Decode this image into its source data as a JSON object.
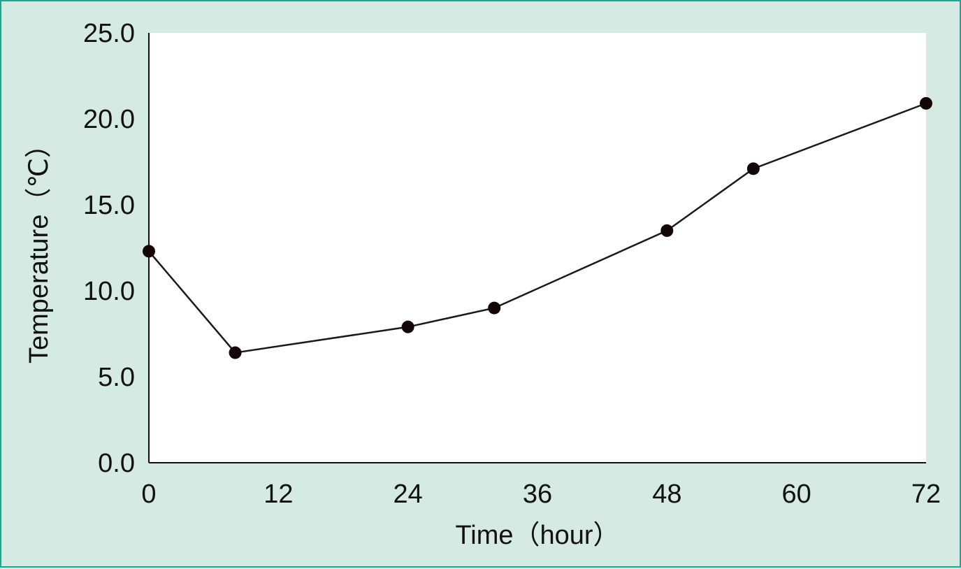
{
  "chart_data": {
    "type": "line",
    "xlabel": "Time（hour）",
    "ylabel": "Temperature（℃）",
    "xlim": [
      0,
      72
    ],
    "ylim": [
      0,
      25
    ],
    "x_ticks": [
      0,
      12,
      24,
      36,
      48,
      60,
      72
    ],
    "x_tick_labels": [
      "0",
      "12",
      "24",
      "36",
      "48",
      "60",
      "72"
    ],
    "y_ticks": [
      0,
      5,
      10,
      15,
      20,
      25
    ],
    "y_tick_labels": [
      "0.0",
      "5.0",
      "10.0",
      "15.0",
      "20.0",
      "25.0"
    ],
    "grid": false,
    "series": [
      {
        "x": [
          0,
          8,
          24,
          32,
          48,
          56,
          72
        ],
        "y": [
          12.3,
          6.4,
          7.9,
          9.0,
          13.5,
          17.1,
          20.9
        ]
      }
    ],
    "colors": {
      "background": "#d4eae2",
      "border": "#1aa88e",
      "plot_area": "#ffffff",
      "line": "#1a1a1a",
      "marker": "#120606"
    }
  }
}
